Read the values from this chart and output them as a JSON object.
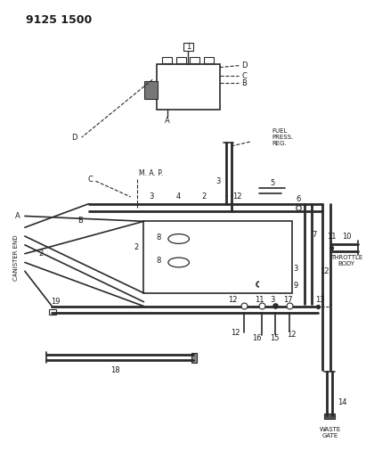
{
  "bg_color": "#ffffff",
  "line_color": "#2a2a2a",
  "text_color": "#1a1a1a",
  "fig_width": 4.11,
  "fig_height": 5.33,
  "dpi": 100,
  "labels": {
    "title": "9125 1500",
    "fuel_press_reg": "FUEL\nPRESS.\nREG.",
    "throttle_body": "THROTTLE\nBODY",
    "waste_gate": "WASTE\nGATE",
    "canister_end": "CANISTER END",
    "map": "M. A. P."
  }
}
